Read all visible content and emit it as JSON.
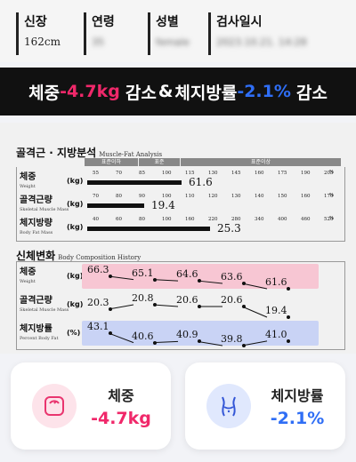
{
  "profile": {
    "height_label": "신장",
    "height_value": "162cm",
    "age_label": "연령",
    "age_value": "35",
    "gender_label": "성별",
    "gender_value": "female",
    "date_label": "검사일시",
    "date_value": "2023.10.21. 14:28"
  },
  "banner": {
    "part1": "체중",
    "weight_change": "-4.7kg",
    "part2": "감소",
    "amp": "&",
    "part3": "체지방률",
    "fat_change": "-2.1%",
    "part4": "감소"
  },
  "muscle_fat": {
    "title": "골격근 · 지방분석",
    "subtitle": "Muscle-Fat Analysis",
    "range_labels": [
      "표준이하",
      "표준",
      "표준이상"
    ],
    "rows": [
      {
        "label": "체중",
        "sub": "Weight",
        "unit": "(kg)",
        "ticks": [
          "55",
          "70",
          "85",
          "100",
          "115",
          "130",
          "145",
          "160",
          "175",
          "190",
          "205"
        ],
        "tick_suffix": "%",
        "value": "61.6",
        "level": 0.46
      },
      {
        "label": "골격근량",
        "sub": "Skeletal Muscle Mass",
        "unit": "(kg)",
        "ticks": [
          "70",
          "80",
          "90",
          "100",
          "110",
          "120",
          "130",
          "140",
          "150",
          "160",
          "170"
        ],
        "tick_suffix": "%",
        "value": "19.4",
        "level": 0.28
      },
      {
        "label": "체지방량",
        "sub": "Body Fat Mass",
        "unit": "(kg)",
        "ticks": [
          "40",
          "60",
          "80",
          "100",
          "160",
          "220",
          "280",
          "340",
          "400",
          "460",
          "520"
        ],
        "tick_suffix": "%",
        "value": "25.3",
        "level": 0.6
      }
    ]
  },
  "history": {
    "title": "신체변화",
    "subtitle": "Body Composition History",
    "rows": [
      {
        "label": "체중",
        "sub": "Weight",
        "unit": "(kg)",
        "values": [
          "66.3",
          "65.1",
          "64.6",
          "63.6",
          "61.6"
        ],
        "highlight": "#f7c6d3"
      },
      {
        "label": "골격근량",
        "sub": "Skeletal Muscle Mass",
        "unit": "(kg)",
        "values": [
          "20.3",
          "20.8",
          "20.6",
          "20.6",
          "19.4"
        ],
        "highlight": ""
      },
      {
        "label": "체지방률",
        "sub": "Percent Body Fat",
        "unit": "(%)",
        "values": [
          "43.1",
          "40.6",
          "40.9",
          "39.8",
          "41.0"
        ],
        "highlight": "#c9d3f5"
      }
    ]
  },
  "cards": [
    {
      "title": "체중",
      "value": "-4.7kg",
      "color": "#f0286a",
      "icon": "scale-icon",
      "bg": "#fde3ea"
    },
    {
      "title": "체지방률",
      "value": "-2.1%",
      "color": "#2f6ef5",
      "icon": "waist-icon",
      "bg": "#e0e8fd"
    }
  ],
  "colors": {
    "pink": "#f0286a",
    "blue": "#2f6ef5",
    "banner_bg": "#111111"
  }
}
